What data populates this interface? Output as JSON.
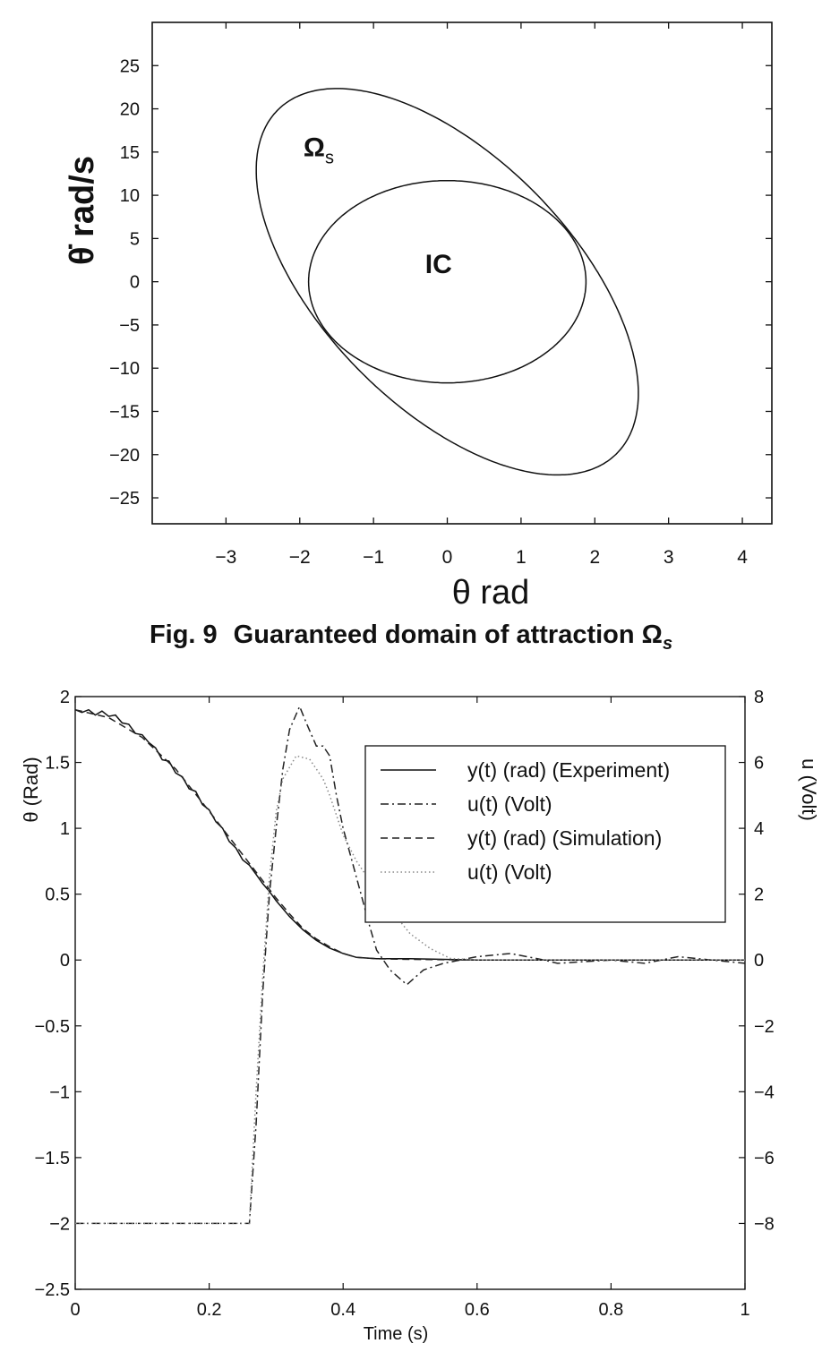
{
  "chart_data": [
    {
      "type": "line",
      "title": "",
      "xlabel": "θ  rad",
      "ylabel": "θ̇  rad/s",
      "xlim": [
        -4,
        4.4
      ],
      "ylim": [
        -28,
        30
      ],
      "xticks": [
        -3,
        -2,
        -1,
        0,
        1,
        2,
        3,
        4
      ],
      "yticks": [
        -25,
        -20,
        -15,
        -10,
        -5,
        0,
        5,
        10,
        15,
        20,
        25
      ],
      "grid": false,
      "series": [
        {
          "name": "Omega_s",
          "shape": "tilted-ellipse",
          "x_amplitude": 2.59,
          "y_cos": -12.9,
          "y_sin": 18.25
        },
        {
          "name": "IC",
          "shape": "ellipse",
          "x_radius": 1.88,
          "y_radius": 11.7
        }
      ],
      "annotations": [
        {
          "text": "Ω",
          "sub": "s",
          "x": -1.95,
          "y": 14.5
        },
        {
          "text": "IC",
          "x": -0.3,
          "y": 1.0
        }
      ]
    },
    {
      "type": "line",
      "title": "",
      "xlabel": "Time (s)",
      "ylabel": "θ (Rad)",
      "ylabel_right": "u (Volt)",
      "xlim": [
        0,
        1
      ],
      "ylim": [
        -2.5,
        2
      ],
      "ylim_right": [
        -10,
        8
      ],
      "xticks": [
        0,
        0.2,
        0.4,
        0.6,
        0.8,
        1
      ],
      "yticks": [
        -2.5,
        -2,
        -1.5,
        -1,
        -0.5,
        0,
        0.5,
        1,
        1.5,
        2
      ],
      "yticks_right": [
        -8,
        -6,
        -4,
        -2,
        0,
        2,
        4,
        6,
        8
      ],
      "grid": false,
      "legend_position": "top-right",
      "series": [
        {
          "name": "y(t) (rad) (Experiment)",
          "axis": "left",
          "style": "solid",
          "x": [
            0,
            0.01,
            0.02,
            0.03,
            0.04,
            0.05,
            0.06,
            0.07,
            0.08,
            0.09,
            0.1,
            0.11,
            0.12,
            0.13,
            0.14,
            0.15,
            0.16,
            0.17,
            0.18,
            0.19,
            0.2,
            0.21,
            0.22,
            0.23,
            0.24,
            0.25,
            0.26,
            0.27,
            0.28,
            0.29,
            0.3,
            0.32,
            0.34,
            0.36,
            0.38,
            0.4,
            0.42,
            0.45,
            0.5,
            0.6,
            1
          ],
          "y": [
            1.9,
            1.88,
            1.9,
            1.86,
            1.89,
            1.85,
            1.86,
            1.8,
            1.79,
            1.72,
            1.71,
            1.65,
            1.61,
            1.52,
            1.51,
            1.42,
            1.39,
            1.3,
            1.28,
            1.18,
            1.14,
            1.05,
            1.0,
            0.9,
            0.85,
            0.76,
            0.72,
            0.65,
            0.58,
            0.52,
            0.45,
            0.33,
            0.23,
            0.15,
            0.09,
            0.05,
            0.02,
            0.01,
            0.01,
            0,
            0
          ]
        },
        {
          "name": "u(t) (Volt)",
          "axis": "right",
          "style": "dashdot",
          "x": [
            0,
            0.26,
            0.27,
            0.28,
            0.29,
            0.3,
            0.31,
            0.32,
            0.335,
            0.345,
            0.36,
            0.37,
            0.38,
            0.39,
            0.4,
            0.42,
            0.44,
            0.45,
            0.46,
            0.47,
            0.495,
            0.52,
            0.55,
            0.6,
            0.65,
            0.7,
            0.72,
            0.8,
            0.85,
            0.9,
            0.95,
            1
          ],
          "y": [
            -8,
            -8,
            -5,
            -1,
            2,
            4,
            5.8,
            7,
            7.7,
            7.2,
            6.5,
            6.5,
            6.2,
            5,
            4,
            2.5,
            1,
            0.3,
            0,
            -0.3,
            -0.75,
            -0.3,
            -0.1,
            0.1,
            0.2,
            0,
            -0.1,
            0,
            -0.1,
            0.1,
            0,
            -0.1
          ]
        },
        {
          "name": "y(t) (rad) (Simulation)",
          "axis": "left",
          "style": "dashed",
          "x": [
            0,
            0.05,
            0.1,
            0.15,
            0.2,
            0.25,
            0.3,
            0.32,
            0.34,
            0.36,
            0.38,
            0.4,
            0.42,
            0.45,
            0.5,
            0.6,
            1
          ],
          "y": [
            1.9,
            1.84,
            1.69,
            1.45,
            1.13,
            0.8,
            0.47,
            0.35,
            0.24,
            0.16,
            0.1,
            0.05,
            0.02,
            0.01,
            0.005,
            0,
            0
          ]
        },
        {
          "name": "u(t) (Volt)",
          "axis": "right",
          "style": "dotted",
          "x": [
            0,
            0.26,
            0.27,
            0.28,
            0.29,
            0.3,
            0.31,
            0.33,
            0.35,
            0.37,
            0.38,
            0.4,
            0.42,
            0.45,
            0.48,
            0.5,
            0.53,
            0.56,
            0.6,
            1
          ],
          "y": [
            -8,
            -8,
            -4,
            -0.5,
            2.5,
            4.5,
            5.5,
            6.2,
            6.1,
            5.5,
            5,
            3.8,
            3,
            2.1,
            1.3,
            0.8,
            0.35,
            0.05,
            0,
            0
          ]
        }
      ]
    }
  ],
  "caption": {
    "prefix": "Fig. 9",
    "text": "Guaranteed domain of attraction Ω",
    "sub": "s"
  }
}
